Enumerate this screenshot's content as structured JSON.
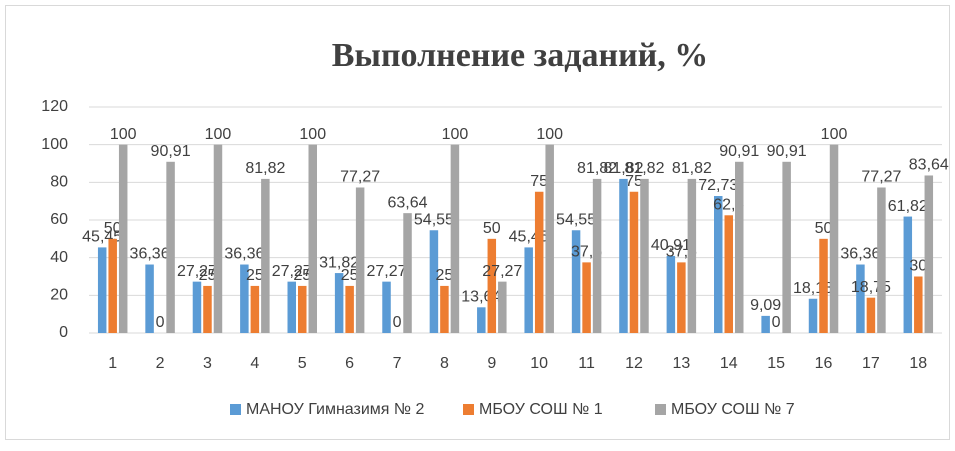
{
  "chart_data": {
    "type": "bar",
    "title": "Выполнение заданий, %",
    "categories": [
      "1",
      "2",
      "3",
      "4",
      "5",
      "6",
      "7",
      "8",
      "9",
      "10",
      "11",
      "12",
      "13",
      "14",
      "15",
      "16",
      "17",
      "18"
    ],
    "series": [
      {
        "name": "МАНОУ Гимназимя № 2",
        "color": "#5b9bd5",
        "values": [
          45.45,
          36.36,
          27.27,
          36.36,
          27.27,
          31.82,
          27.27,
          54.55,
          13.64,
          45.45,
          54.55,
          81.82,
          40.91,
          72.73,
          9.09,
          18.18,
          36.36,
          61.82
        ],
        "value_labels": [
          "45,45",
          "36,36",
          "27,27",
          "36,36",
          "27,27",
          "31,82",
          "27,27",
          "54,55",
          "13,64",
          "45,45",
          "54,55",
          "81,82",
          "40,91",
          "72,73",
          "9,09",
          "18,18",
          "36,36",
          "61,82"
        ]
      },
      {
        "name": "МБОУ СОШ № 1",
        "color": "#ed7d31",
        "values": [
          50,
          0,
          25,
          25,
          25,
          25,
          0,
          25,
          50,
          75,
          37.5,
          75,
          37.5,
          62.5,
          0,
          50,
          18.75,
          30
        ],
        "value_labels": [
          "50",
          "0",
          "25",
          "25",
          "25",
          "25",
          "0",
          "25",
          "50",
          "75",
          "37,5",
          "75",
          "37,5",
          "62,5",
          "0",
          "50",
          "18,75",
          "30"
        ]
      },
      {
        "name": "МБОУ СОШ № 7",
        "color": "#a5a5a5",
        "values": [
          100,
          90.91,
          100,
          81.82,
          100,
          77.27,
          63.64,
          100,
          27.27,
          100,
          81.82,
          81.82,
          81.82,
          90.91,
          90.91,
          100,
          77.27,
          83.64
        ],
        "value_labels": [
          "100",
          "90,91",
          "100",
          "81,82",
          "100",
          "77,27",
          "63,64",
          "100",
          "27,27",
          "100",
          "81,82",
          "81,82",
          "81,82",
          "90,91",
          "90,91",
          "100",
          "77,27",
          "83,64"
        ]
      }
    ],
    "ylim": [
      0,
      120
    ],
    "yticks": [
      0,
      20,
      40,
      60,
      80,
      100,
      120
    ],
    "grid": true,
    "legend": "bottom"
  }
}
